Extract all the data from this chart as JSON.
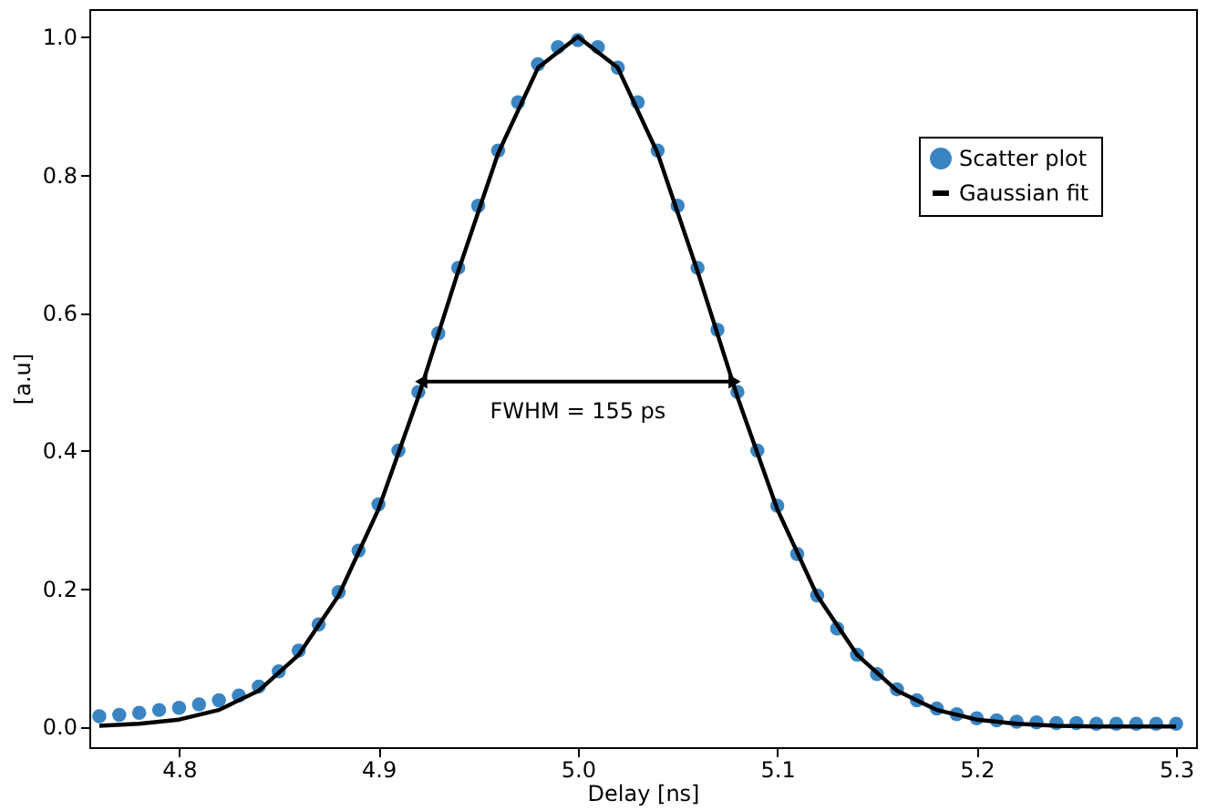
{
  "chart_data": {
    "type": "scatter",
    "xlabel": "Delay [ns]",
    "ylabel": "[a.u]",
    "xlim": [
      4.755,
      5.31
    ],
    "ylim": [
      -0.03,
      1.04
    ],
    "xticks": [
      4.8,
      4.9,
      {
        "value": 5,
        "label": "5.0"
      },
      5.1,
      5.2,
      5.3
    ],
    "yticks": [
      {
        "value": 0,
        "label": "0.0"
      },
      0.2,
      0.4,
      0.6,
      0.8,
      {
        "value": 1,
        "label": "1.0"
      }
    ],
    "grid": false,
    "legend": "top right",
    "marker": "circle",
    "annotations": [
      "FWHM = 155 ps"
    ],
    "series": [
      {
        "name": "Scatter plot",
        "color": "#3a84c2",
        "x": [
          4.76,
          4.77,
          4.78,
          4.79,
          4.8,
          4.81,
          4.82,
          4.83,
          4.84,
          4.85,
          4.86,
          4.87,
          4.88,
          4.89,
          4.9,
          4.91,
          4.92,
          4.93,
          4.94,
          4.95,
          4.96,
          4.97,
          4.98,
          4.99,
          5.0,
          5.01,
          5.02,
          5.03,
          5.04,
          5.05,
          5.06,
          5.07,
          5.08,
          5.09,
          5.1,
          5.11,
          5.12,
          5.13,
          5.14,
          5.15,
          5.16,
          5.17,
          5.18,
          5.19,
          5.2,
          5.21,
          5.22,
          5.23,
          5.24,
          5.25,
          5.26,
          5.27,
          5.28,
          5.29,
          5.3
        ],
        "values": [
          0.015,
          0.017,
          0.02,
          0.024,
          0.027,
          0.032,
          0.038,
          0.045,
          0.058,
          0.08,
          0.11,
          0.148,
          0.195,
          0.255,
          0.322,
          0.4,
          0.485,
          0.57,
          0.665,
          0.755,
          0.835,
          0.905,
          0.96,
          0.985,
          0.995,
          0.985,
          0.955,
          0.905,
          0.835,
          0.755,
          0.665,
          0.575,
          0.485,
          0.4,
          0.32,
          0.25,
          0.19,
          0.142,
          0.104,
          0.076,
          0.054,
          0.038,
          0.026,
          0.018,
          0.012,
          0.009,
          0.007,
          0.006,
          0.005,
          0.005,
          0.004,
          0.004,
          0.004,
          0.004,
          0.004
        ]
      },
      {
        "name": "Gaussian fit",
        "type": "line",
        "color": "#000000",
        "line_style": "solid",
        "marker": "none",
        "x": [
          4.76,
          4.78,
          4.8,
          4.82,
          4.84,
          4.86,
          4.88,
          4.9,
          4.92,
          4.94,
          4.96,
          4.98,
          5.0,
          5.02,
          5.04,
          5.06,
          5.08,
          5.1,
          5.12,
          5.14,
          5.16,
          5.18,
          5.2,
          5.22,
          5.24,
          5.26,
          5.28,
          5.3
        ],
        "values": [
          0.001,
          0.004,
          0.01,
          0.024,
          0.052,
          0.104,
          0.19,
          0.315,
          0.478,
          0.66,
          0.831,
          0.955,
          1.0,
          0.955,
          0.831,
          0.66,
          0.478,
          0.315,
          0.19,
          0.104,
          0.052,
          0.024,
          0.01,
          0.004,
          0.001,
          0.0,
          0.0,
          0.0
        ]
      }
    ]
  }
}
